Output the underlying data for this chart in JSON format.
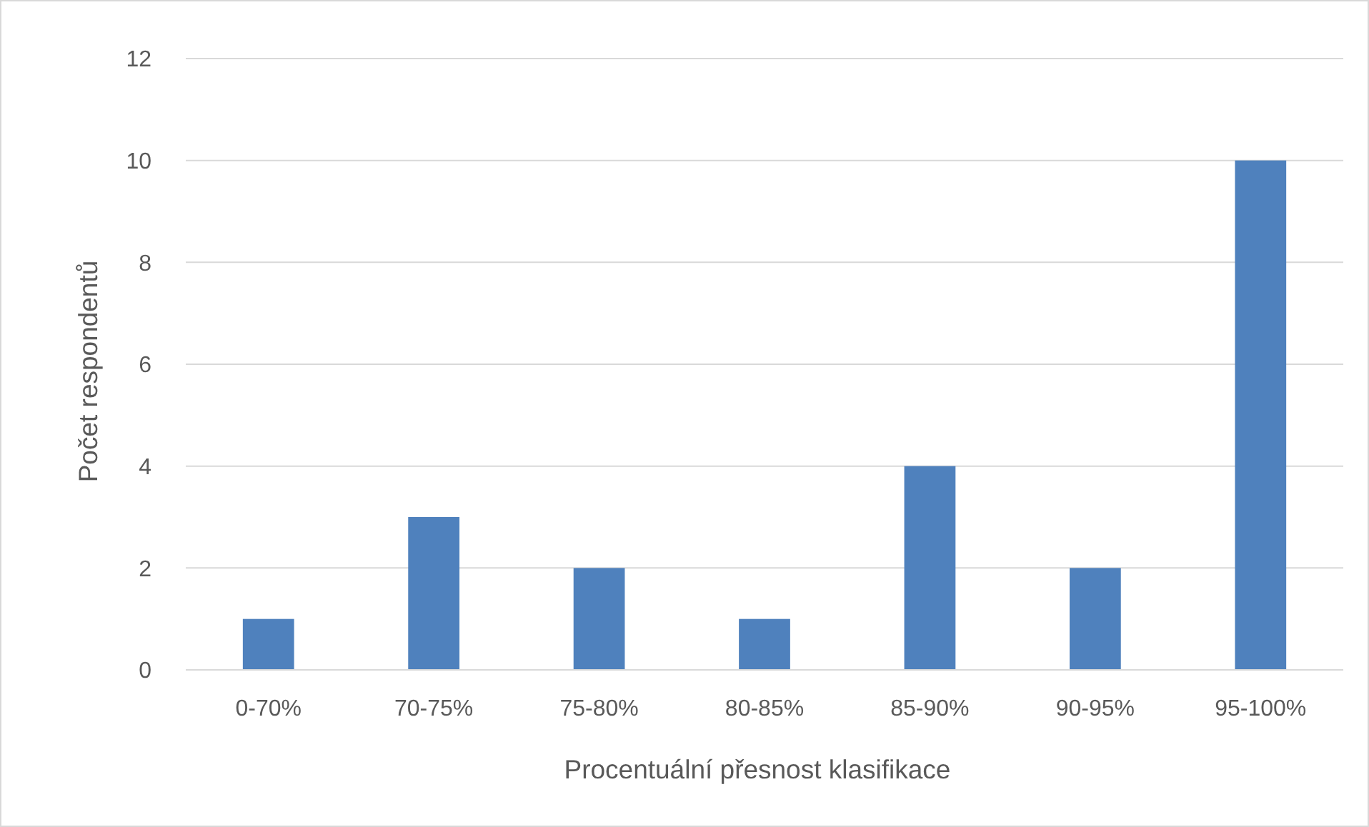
{
  "chart_data": {
    "type": "bar",
    "xlabel": "Procentuální přesnost klasifikace",
    "ylabel": "Počet respondentů",
    "categories": [
      "0-70%",
      "70-75%",
      "75-80%",
      "80-85%",
      "85-90%",
      "90-95%",
      "95-100%"
    ],
    "values": [
      1,
      3,
      2,
      1,
      4,
      2,
      10
    ],
    "color": "#4f81bd",
    "ylim": [
      0,
      12
    ],
    "yticks": [
      0,
      2,
      4,
      6,
      8,
      10,
      12
    ],
    "grid": "y"
  }
}
